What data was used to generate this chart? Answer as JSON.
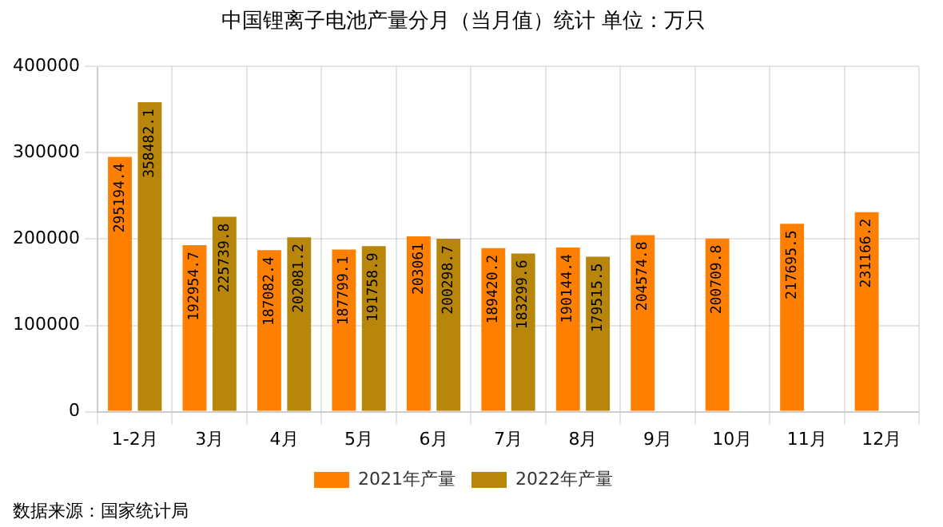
{
  "chart_data": {
    "type": "bar",
    "title": "中国锂离子电池产量分月（当月值）统计 单位：万只",
    "categories": [
      "1-2月",
      "3月",
      "4月",
      "5月",
      "6月",
      "7月",
      "8月",
      "9月",
      "10月",
      "11月",
      "12月"
    ],
    "series": [
      {
        "name": "2021年产量",
        "color": "#ff8000",
        "values": [
          295194.4,
          192954.7,
          187082.4,
          187799.1,
          203061,
          189420.2,
          190144.4,
          204574.8,
          200709.8,
          217695.5,
          231166.2
        ]
      },
      {
        "name": "2022年产量",
        "color": "#b8860b",
        "values": [
          358482.1,
          225739.8,
          202081.2,
          191758.9,
          200298.7,
          183299.6,
          179515.5,
          null,
          null,
          null,
          null
        ]
      }
    ],
    "ylim": [
      0,
      400000
    ],
    "yticks": [
      0,
      100000,
      200000,
      300000,
      400000
    ],
    "grid": true,
    "legend": "bottom",
    "data_labels": true,
    "annotations": [
      "数据来源：国家统计局"
    ]
  }
}
